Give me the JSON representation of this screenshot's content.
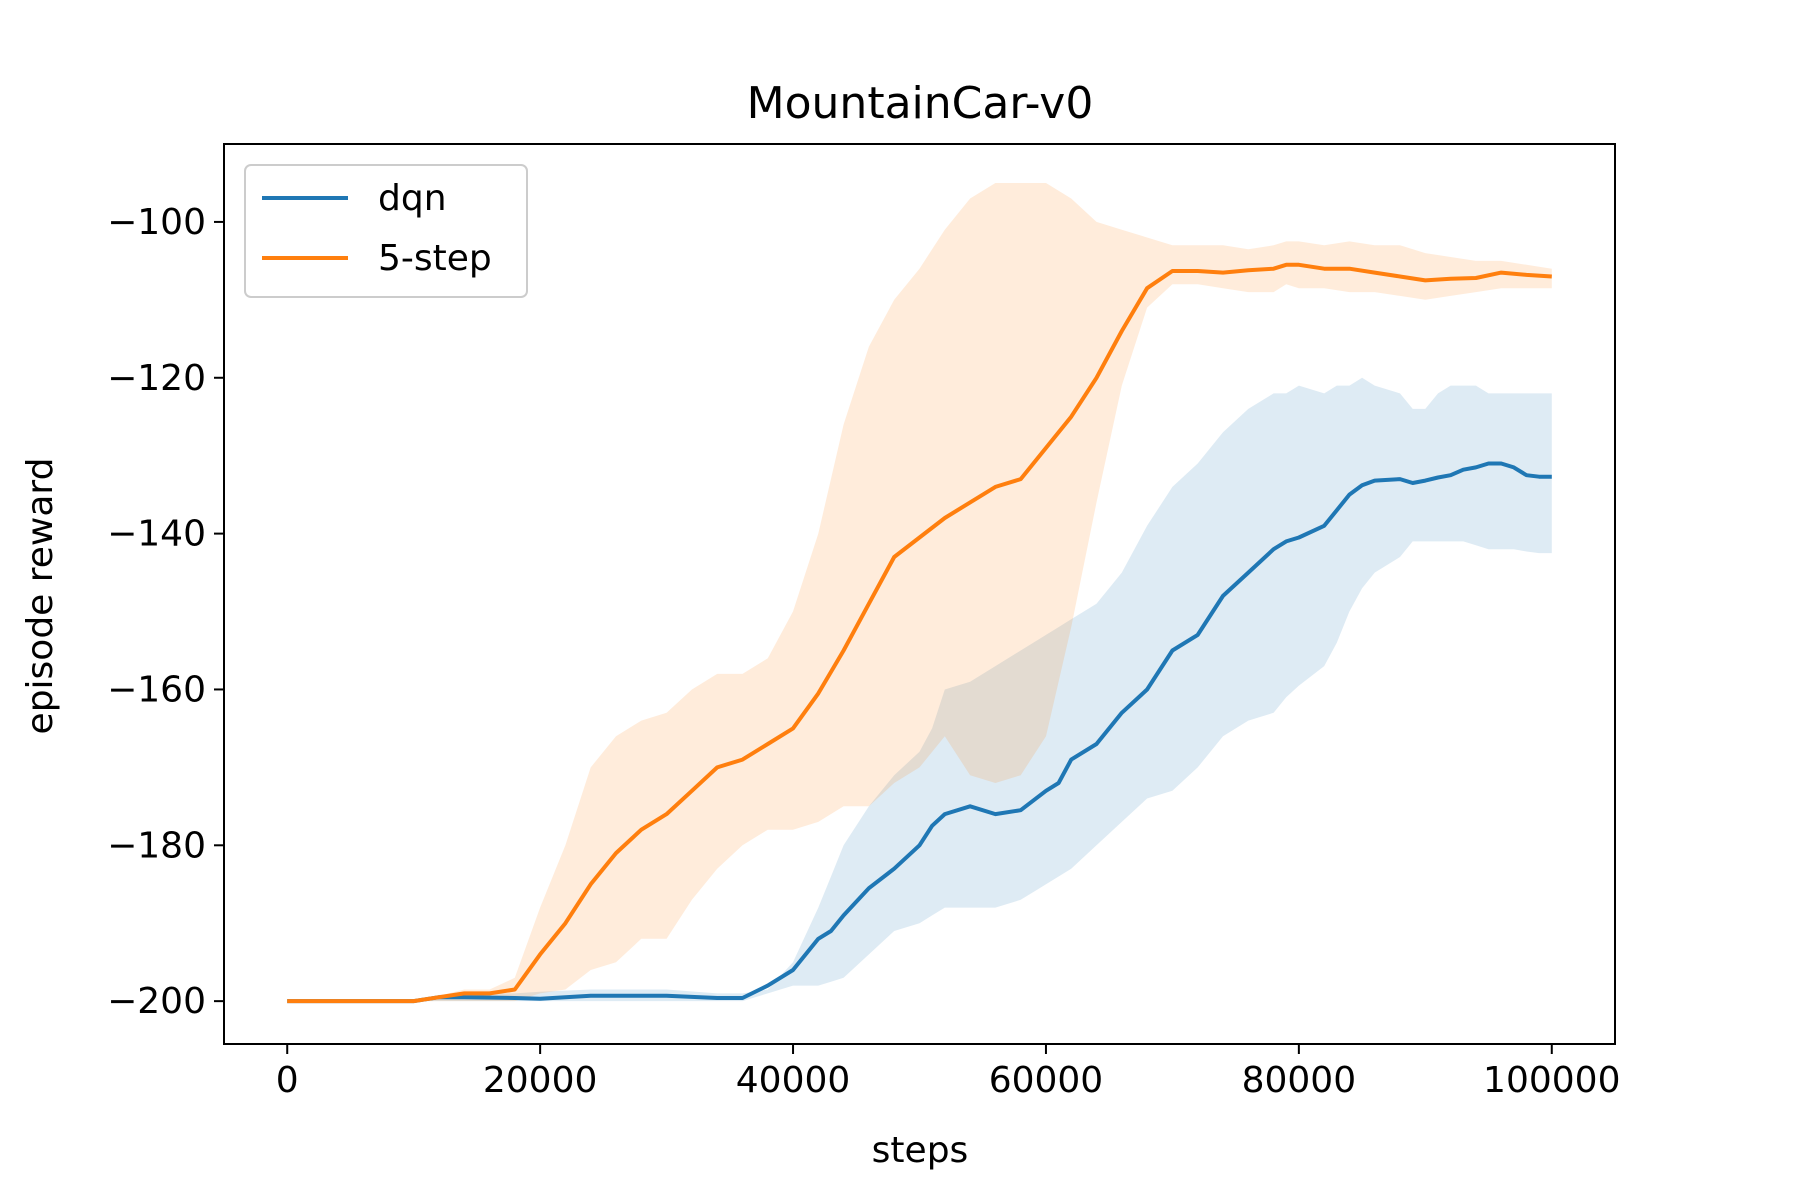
{
  "chart_data": {
    "type": "line",
    "title": "MountainCar-v0",
    "xlabel": "steps",
    "ylabel": "episode reward",
    "xlim": [
      -5000,
      105000
    ],
    "ylim": [
      -205.5,
      -90
    ],
    "xticks": [
      0,
      20000,
      40000,
      60000,
      80000,
      100000
    ],
    "xtick_labels": [
      "0",
      "20000",
      "40000",
      "60000",
      "80000",
      "100000"
    ],
    "yticks": [
      -200,
      -180,
      -160,
      -140,
      -120,
      -100
    ],
    "ytick_labels": [
      "−200",
      "−180",
      "−160",
      "−140",
      "−120",
      "−100"
    ],
    "grid": false,
    "legend_position": "upper-left",
    "series": [
      {
        "name": "dqn",
        "color": "#1f77b4",
        "x": [
          0,
          10000,
          12000,
          14000,
          18000,
          20000,
          24000,
          30000,
          34000,
          36000,
          38000,
          40000,
          42000,
          43000,
          44000,
          46000,
          48000,
          50000,
          51000,
          52000,
          54000,
          56000,
          58000,
          60000,
          61000,
          62000,
          64000,
          66000,
          68000,
          70000,
          72000,
          74000,
          76000,
          78000,
          79000,
          80000,
          82000,
          83000,
          84000,
          85000,
          86000,
          88000,
          89000,
          90000,
          91000,
          92000,
          93000,
          94000,
          95000,
          96000,
          97000,
          98000,
          99000,
          100000
        ],
        "y": [
          -200,
          -200,
          -199.5,
          -199.5,
          -199.6,
          -199.7,
          -199.3,
          -199.3,
          -199.6,
          -199.6,
          -198,
          -196,
          -192,
          -191,
          -189,
          -185.5,
          -183,
          -180,
          -177.5,
          -176,
          -175,
          -176,
          -175.5,
          -173,
          -172,
          -169,
          -167,
          -163,
          -160,
          -155,
          -153,
          -148,
          -145,
          -142,
          -141,
          -140.5,
          -139,
          -137,
          -135,
          -133.8,
          -133.2,
          -133,
          -133.5,
          -133.2,
          -132.8,
          -132.5,
          -131.8,
          -131.5,
          -131,
          -131,
          -131.5,
          -132.5,
          -132.7,
          -132.7
        ],
        "upper": [
          -200,
          -200,
          -199.2,
          -199,
          -199,
          -198.8,
          -198.5,
          -198.5,
          -199,
          -199,
          -198.5,
          -195,
          -188,
          -184,
          -180,
          -175,
          -171,
          -168,
          -165,
          -160,
          -159,
          -157,
          -155,
          -153,
          -152,
          -151,
          -149,
          -145,
          -139,
          -134,
          -131,
          -127,
          -124,
          -122,
          -122,
          -121,
          -122,
          -121,
          -121,
          -120,
          -121,
          -122,
          -124,
          -124,
          -122,
          -121,
          -121,
          -121,
          -122,
          -122,
          -122,
          -122,
          -122,
          -122
        ],
        "lower": [
          -200,
          -200,
          -200,
          -200,
          -200,
          -200,
          -200,
          -200,
          -200,
          -200,
          -199,
          -198,
          -198,
          -197.5,
          -197,
          -194,
          -191,
          -190,
          -189,
          -188,
          -188,
          -188,
          -187,
          -185,
          -184,
          -183,
          -180,
          -177,
          -174,
          -173,
          -170,
          -166,
          -164,
          -163,
          -161,
          -159.5,
          -157,
          -154,
          -150,
          -147,
          -145,
          -143,
          -141,
          -141,
          -141,
          -141,
          -141,
          -141.5,
          -142,
          -142,
          -142,
          -142.3,
          -142.5,
          -142.5
        ]
      },
      {
        "name": "5-step",
        "color": "#ff7f0e",
        "x": [
          0,
          10000,
          12000,
          14000,
          16000,
          18000,
          20000,
          22000,
          24000,
          26000,
          28000,
          30000,
          32000,
          34000,
          36000,
          38000,
          40000,
          42000,
          44000,
          46000,
          48000,
          50000,
          52000,
          54000,
          56000,
          58000,
          60000,
          62000,
          64000,
          66000,
          68000,
          70000,
          72000,
          74000,
          76000,
          78000,
          79000,
          80000,
          82000,
          84000,
          86000,
          88000,
          90000,
          92000,
          94000,
          96000,
          98000,
          100000
        ],
        "y": [
          -200,
          -200,
          -199.5,
          -199,
          -199,
          -198.5,
          -194,
          -190,
          -185,
          -181,
          -178,
          -176,
          -173,
          -170,
          -169,
          -167,
          -165,
          -160.5,
          -155,
          -149,
          -143,
          -140.5,
          -138,
          -136,
          -134,
          -133,
          -129,
          -125,
          -120,
          -114,
          -108.5,
          -106.3,
          -106.3,
          -106.5,
          -106.2,
          -106,
          -105.5,
          -105.5,
          -106,
          -106,
          -106.5,
          -107,
          -107.5,
          -107.3,
          -107.2,
          -106.5,
          -106.8,
          -107
        ],
        "upper": [
          -200,
          -200,
          -199.3,
          -198.5,
          -198.5,
          -197,
          -188,
          -180,
          -170,
          -166,
          -164,
          -163,
          -160,
          -158,
          -158,
          -156,
          -150,
          -140,
          -126,
          -116,
          -110,
          -106,
          -101,
          -97,
          -95,
          -95,
          -95,
          -97,
          -100,
          -101,
          -102,
          -103,
          -103,
          -103,
          -103.5,
          -103,
          -102.5,
          -102.5,
          -103,
          -102.5,
          -103,
          -103,
          -104,
          -104.5,
          -105,
          -105,
          -105.5,
          -106
        ],
        "lower": [
          -200,
          -200,
          -200,
          -200,
          -200,
          -200,
          -199,
          -198.5,
          -196,
          -195,
          -192,
          -192,
          -187,
          -183,
          -180,
          -178,
          -178,
          -177,
          -175,
          -175,
          -172,
          -170,
          -166,
          -171,
          -172,
          -171,
          -166,
          -152,
          -136,
          -121,
          -111,
          -108,
          -108,
          -108.5,
          -109,
          -109,
          -108,
          -108.5,
          -108.5,
          -109,
          -109,
          -109.5,
          -110,
          -109.5,
          -109,
          -108.5,
          -108.5,
          -108.5
        ]
      }
    ]
  }
}
